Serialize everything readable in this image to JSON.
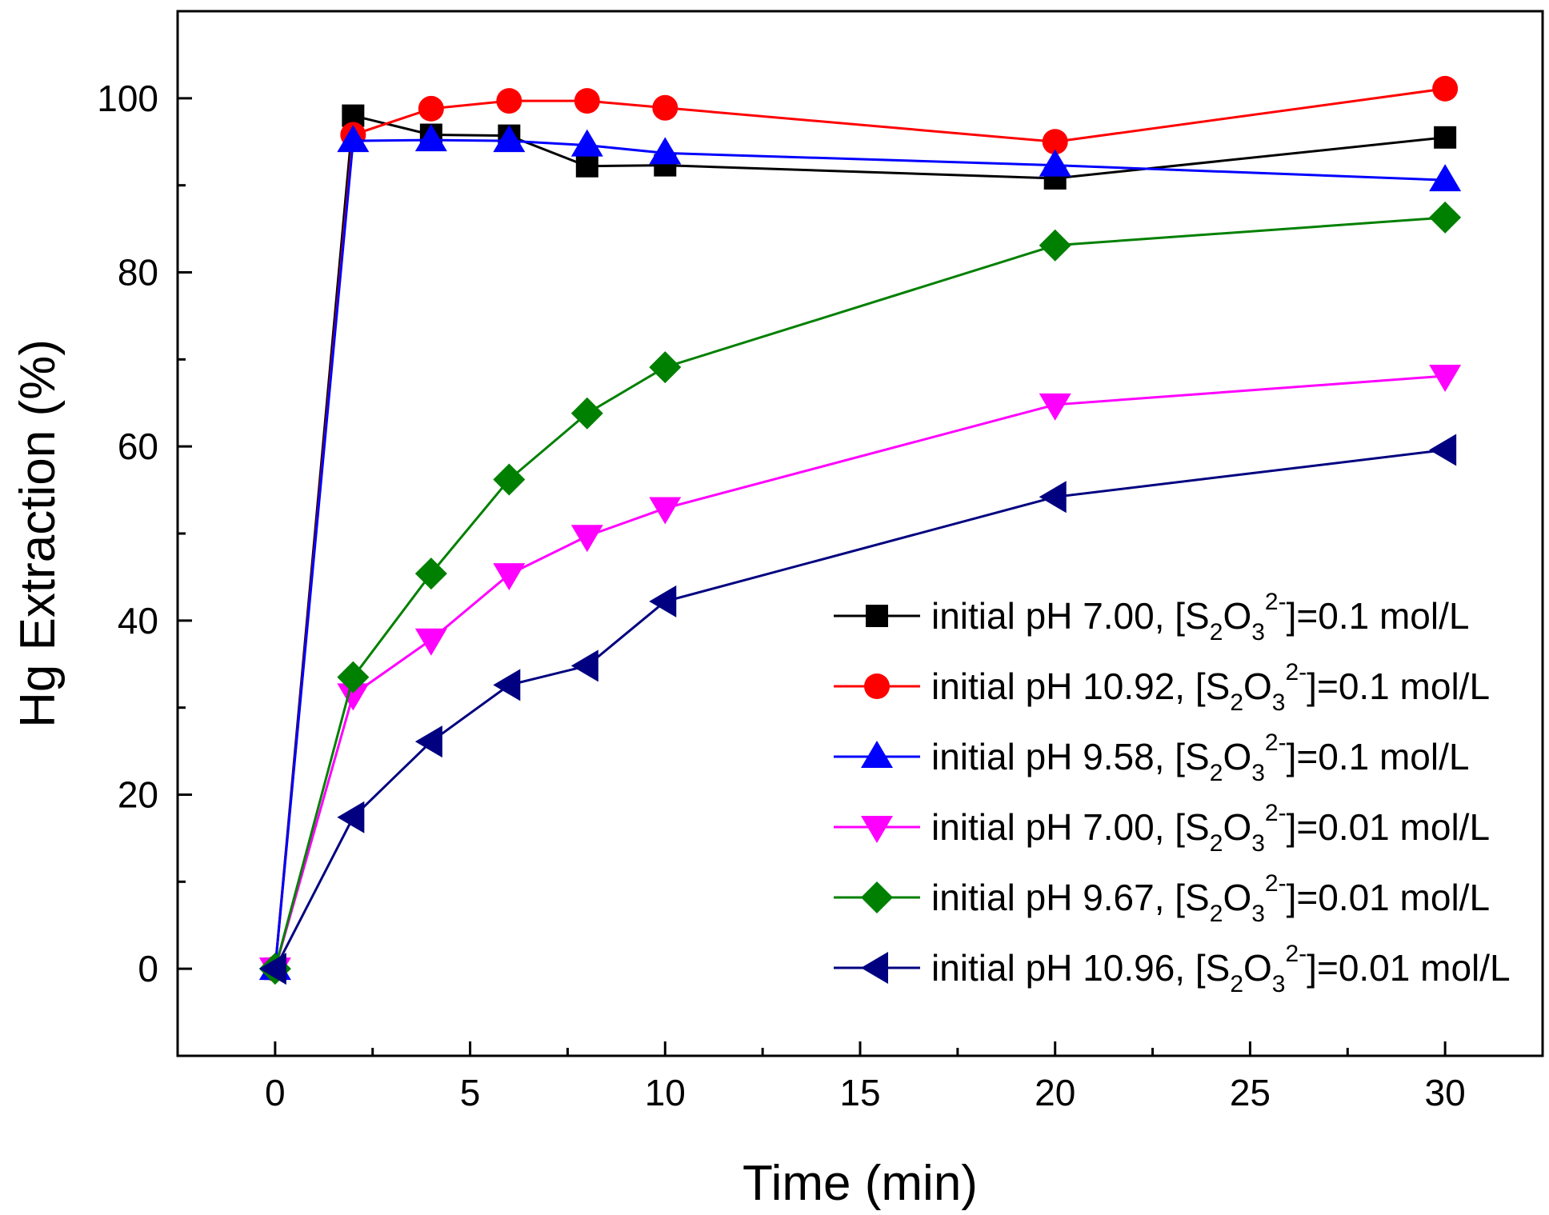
{
  "chart_data": {
    "type": "line",
    "title": "",
    "xlabel": "Time (min)",
    "ylabel": "Hg Extraction (%)",
    "xlim": [
      -2.5,
      32.5
    ],
    "ylim": [
      -10,
      110
    ],
    "xticks": [
      0,
      5,
      10,
      15,
      20,
      25,
      30
    ],
    "yticks": [
      0,
      20,
      40,
      60,
      80,
      100
    ],
    "grid": false,
    "legend_position": "bottom-right",
    "x": [
      0,
      2,
      4,
      6,
      8,
      10,
      20,
      30
    ],
    "series": [
      {
        "name": "initial pH 7.00, [S2O3 2-]=0.1 mol/L",
        "legend_prefix": "initial pH 7.00, [S",
        "legend_suffix": "]=0.1 mol/L",
        "color": "#000000",
        "marker": "square",
        "values": [
          0,
          98.0,
          95.8,
          95.7,
          92.2,
          92.3,
          90.8,
          95.5
        ]
      },
      {
        "name": "initial pH 10.92, [S2O3 2-]=0.1 mol/L",
        "legend_prefix": "initial pH 10.92, [S",
        "legend_suffix": "]=0.1 mol/L",
        "color": "#ff0000",
        "marker": "circle",
        "values": [
          0,
          95.8,
          98.8,
          99.7,
          99.7,
          98.9,
          95.0,
          101.1
        ]
      },
      {
        "name": "initial pH 9.58, [S2O3 2-]=0.1 mol/L",
        "legend_prefix": "initial pH 9.58, [S",
        "legend_suffix": "]=0.1 mol/L",
        "color": "#0000ff",
        "marker": "triangle-up",
        "values": [
          0,
          95.1,
          95.2,
          95.1,
          94.6,
          93.7,
          92.3,
          90.6
        ]
      },
      {
        "name": "initial pH 7.00, [S2O3 2-]=0.01 mol/L",
        "legend_prefix": "initial pH 7.00, [S",
        "legend_suffix": "]=0.01 mol/L",
        "color": "#ff00ff",
        "marker": "triangle-down",
        "values": [
          0,
          31.5,
          37.8,
          45.3,
          49.7,
          52.9,
          64.8,
          68.1
        ]
      },
      {
        "name": "initial pH 9.67, [S2O3 2-]=0.01 mol/L",
        "legend_prefix": "initial pH 9.67, [S",
        "legend_suffix": "]=0.01 mol/L",
        "color": "#008000",
        "marker": "diamond",
        "values": [
          0,
          33.5,
          45.4,
          56.2,
          63.8,
          69.1,
          83.1,
          86.3
        ]
      },
      {
        "name": "initial pH 10.96, [S2O3 2-]=0.01 mol/L",
        "legend_prefix": "initial pH 10.96, [S",
        "legend_suffix": "]=0.01 mol/L",
        "color": "#000080",
        "marker": "triangle-left",
        "values": [
          0,
          17.4,
          26.1,
          32.6,
          34.8,
          42.2,
          54.2,
          59.6
        ]
      }
    ],
    "legend_formula": {
      "s_sub": "2",
      "o": "O",
      "o_sub": "3",
      "sup": "2-"
    }
  }
}
